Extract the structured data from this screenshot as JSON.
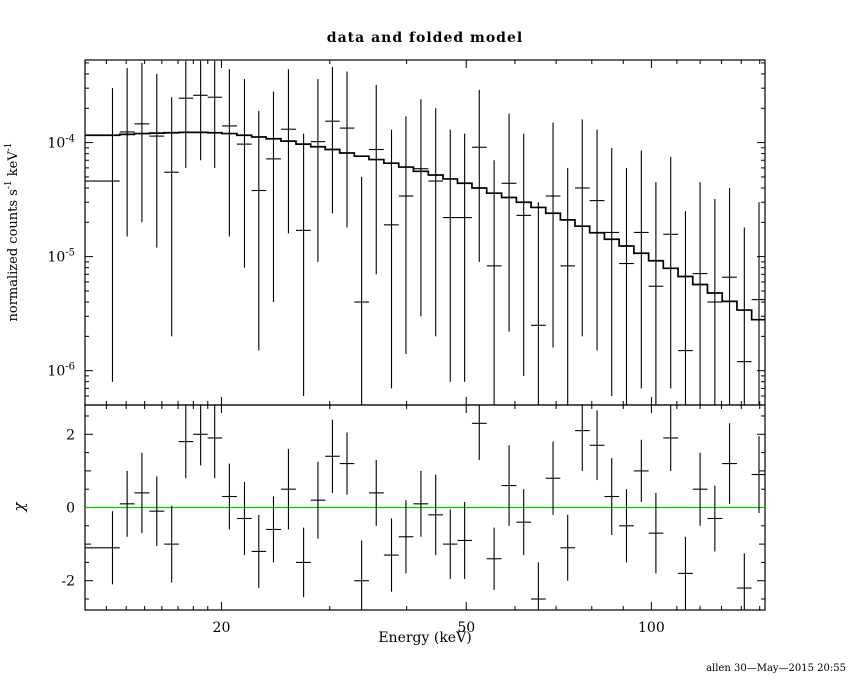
{
  "title": "data and folded model",
  "footer": {
    "credit": "allen 30—May—2015 20:55"
  },
  "axes": {
    "x_label": "Energy (keV)",
    "bottom_y_label": "χ",
    "top_y_label_parts": [
      {
        "t": "normalized counts s"
      },
      {
        "t": "-1",
        "sup": true
      },
      {
        "t": " keV"
      },
      {
        "t": "-1",
        "sup": true
      }
    ]
  },
  "chart_data": [
    {
      "id": "spectrum",
      "type": "line",
      "title": "data and folded model",
      "xlabel": "Energy (keV)",
      "ylabel": "normalized counts s^-1 keV^-1",
      "xscale": "log",
      "yscale": "log",
      "xlim": [
        12,
        153
      ],
      "ylim": [
        5e-07,
        0.00053
      ],
      "x_major_ticks": [
        {
          "v": 20,
          "label": "20"
        },
        {
          "v": 50,
          "label": "50"
        },
        {
          "v": 100,
          "label": "100"
        }
      ],
      "x_minor_ticks": [
        13,
        14,
        15,
        16,
        17,
        18,
        19,
        30,
        40,
        60,
        70,
        80,
        90,
        110,
        120,
        130,
        140,
        150
      ],
      "y_ticks": [
        {
          "v": 1e-06,
          "exp": "-6"
        },
        {
          "v": 1e-05,
          "exp": "-5"
        },
        {
          "v": 0.0001,
          "exp": "-4"
        }
      ],
      "model": {
        "x": [
          13.3,
          14.05,
          14.85,
          15.7,
          16.6,
          17.5,
          18.5,
          19.5,
          20.6,
          21.8,
          23.0,
          24.3,
          25.7,
          27.2,
          28.7,
          30.3,
          32.0,
          33.8,
          35.7,
          37.8,
          39.9,
          42.2,
          44.6,
          47.1,
          49.7,
          52.5,
          55.5,
          58.7,
          62.0,
          65.5,
          69.2,
          73.1,
          77.2,
          81.6,
          86.2,
          91.1,
          96.3,
          101.7,
          107.5,
          113.6,
          120.0,
          126.8,
          134.0,
          141.6,
          149.6
        ],
        "y": [
          0.000116,
          0.000118,
          0.00012,
          0.000121,
          0.000122,
          0.000123,
          0.000123,
          0.000122,
          0.00012,
          0.000116,
          0.000112,
          0.000108,
          0.000103,
          9.7e-05,
          9.2e-05,
          8.7e-05,
          8.1e-05,
          7.6e-05,
          7.1e-05,
          6.6e-05,
          6.1e-05,
          5.6e-05,
          5.2e-05,
          4.8e-05,
          4.4e-05,
          4e-05,
          3.6e-05,
          3.3e-05,
          3e-05,
          2.7e-05,
          2.4e-05,
          2.1e-05,
          1.85e-05,
          1.62e-05,
          1.42e-05,
          1.24e-05,
          1.07e-05,
          9.2e-06,
          7.9e-06,
          6.7e-06,
          5.7e-06,
          4.8e-06,
          4.05e-06,
          3.4e-06,
          2.8e-06
        ]
      },
      "data": {
        "x": [
          13.3,
          14.05,
          14.85,
          15.7,
          16.6,
          17.5,
          18.5,
          19.5,
          20.6,
          21.8,
          23.0,
          24.3,
          25.7,
          27.2,
          28.7,
          30.3,
          32.0,
          33.8,
          35.7,
          37.8,
          39.9,
          42.2,
          44.6,
          47.1,
          49.7,
          52.5,
          55.5,
          58.7,
          62.0,
          65.5,
          69.2,
          73.1,
          77.2,
          81.6,
          86.2,
          91.1,
          96.3,
          101.7,
          107.5,
          113.6,
          120.0,
          126.8,
          134.0,
          141.6,
          149.6
        ],
        "y": [
          4.6e-05,
          0.000124,
          0.000146,
          0.000114,
          5.5e-05,
          0.000245,
          0.00026,
          0.00025,
          0.00014,
          9.7e-05,
          3.8e-05,
          7.2e-05,
          0.000131,
          1.7e-05,
          0.000102,
          0.000154,
          0.000134,
          4e-06,
          8.7e-05,
          1.9e-05,
          3.4e-05,
          5.9e-05,
          4.6e-05,
          2.2e-05,
          2.2e-05,
          9.1e-05,
          8.3e-06,
          4.4e-05,
          2.3e-05,
          2.5e-06,
          3.4e-05,
          8.3e-06,
          4e-05,
          3.1e-05,
          1.63e-05,
          8.7e-06,
          1.63e-05,
          5.5e-06,
          1.57e-05,
          1.5e-06,
          7.1e-06,
          4e-06,
          6.6e-06,
          1.2e-06,
          4.2e-06
        ],
        "ylo": [
          8e-07,
          1.5e-05,
          2e-05,
          1.2e-05,
          2e-06,
          6e-05,
          7e-05,
          6e-05,
          1.5e-05,
          8e-06,
          1.5e-06,
          4e-06,
          1.6e-05,
          6e-07,
          9e-06,
          2.4e-05,
          1.8e-05,
          5e-07,
          7e-06,
          7e-07,
          1.4e-06,
          3e-06,
          2e-06,
          8e-07,
          8e-07,
          9e-06,
          5e-07,
          2.2e-06,
          9e-07,
          5e-07,
          1.6e-06,
          5e-07,
          2e-06,
          1.5e-06,
          6e-07,
          5e-07,
          7e-07,
          5e-07,
          7e-07,
          5e-07,
          5e-07,
          5e-07,
          5e-07,
          5e-07,
          5e-07
        ],
        "yhi": [
          0.0003,
          0.00045,
          0.0005,
          0.0004,
          0.00025,
          0.00052,
          0.00052,
          0.00052,
          0.00044,
          0.00036,
          0.00019,
          0.00028,
          0.00044,
          0.00012,
          0.00036,
          0.00046,
          0.00042,
          5e-05,
          0.00032,
          0.00013,
          0.00017,
          0.00024,
          0.0002,
          0.00013,
          0.00012,
          0.00029,
          7e-05,
          0.00018,
          0.00012,
          3e-05,
          0.00015,
          6e-05,
          0.00016,
          0.00013,
          9e-05,
          6e-05,
          8.5e-05,
          4.5e-05,
          7.5e-05,
          2.5e-05,
          4.5e-05,
          3.2e-05,
          4e-05,
          1.8e-05,
          3e-05
        ]
      }
    },
    {
      "id": "residuals",
      "type": "scatter",
      "ylabel": "χ",
      "ylim": [
        -2.8,
        2.8
      ],
      "y_ticks": [
        -2,
        0,
        2
      ],
      "zero_line_color": "#00cc00",
      "x_ref": "chart_data[0].data.x",
      "chi": [
        -1.1,
        0.1,
        0.4,
        -0.1,
        -1.0,
        1.8,
        2.0,
        1.9,
        0.3,
        -0.3,
        -1.2,
        -0.6,
        0.5,
        -1.5,
        0.2,
        1.4,
        1.2,
        -2.0,
        0.4,
        -1.3,
        -0.8,
        0.1,
        -0.2,
        -1.0,
        -0.9,
        2.3,
        -1.4,
        0.6,
        -0.4,
        -2.5,
        0.8,
        -1.1,
        2.1,
        1.7,
        0.3,
        -0.5,
        1.0,
        -0.7,
        1.9,
        -1.8,
        0.5,
        -0.3,
        1.2,
        -2.2,
        0.9
      ],
      "err": [
        1.0,
        0.9,
        1.1,
        0.95,
        1.05,
        1.0,
        0.85,
        1.1,
        0.9,
        1.0,
        1.0,
        0.9,
        1.1,
        0.95,
        1.05,
        1.0,
        0.85,
        1.1,
        0.9,
        1.0,
        1.0,
        0.9,
        1.1,
        0.95,
        1.05,
        1.0,
        0.85,
        1.1,
        0.9,
        1.0,
        1.0,
        0.9,
        1.1,
        0.95,
        1.05,
        1.0,
        0.85,
        1.1,
        0.9,
        1.0,
        1.0,
        0.9,
        1.1,
        0.95,
        1.05
      ]
    }
  ]
}
